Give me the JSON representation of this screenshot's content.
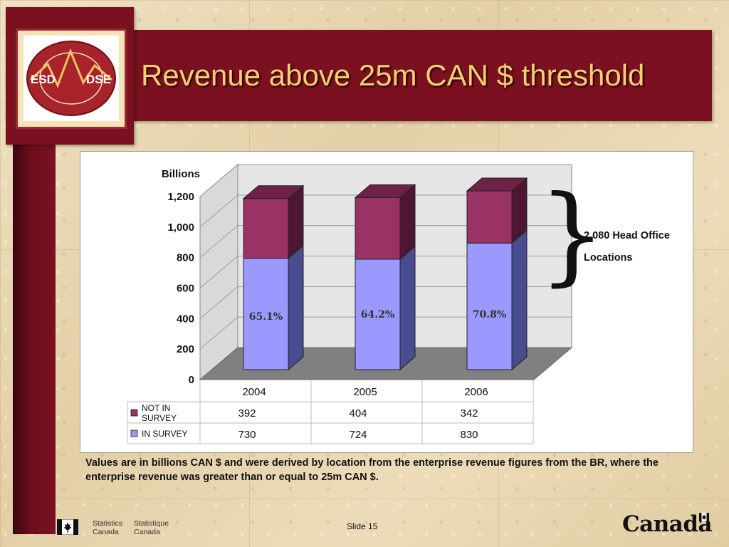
{
  "slide": {
    "title": "Revenue above 25m CAN $ threshold",
    "slide_number": "Slide 15",
    "footnote": "Values are in billions CAN $ and were derived by location from the enterprise revenue figures from the BR, where the enterprise revenue was greater than or equal to 25m CAN $.",
    "annotation": {
      "line1": "2,080 Head Office",
      "line2": "Locations"
    },
    "logo": {
      "left": "ESD",
      "right": "DSE"
    },
    "footer": {
      "stat_en_1": "Statistics",
      "stat_en_2": "Canada",
      "stat_fr_1": "Statistique",
      "stat_fr_2": "Canada",
      "wordmark": "Canada"
    }
  },
  "chart_data": {
    "type": "bar",
    "stacked": true,
    "ylabel": "Billions",
    "ylim": [
      0,
      1200
    ],
    "yticks": [
      "0",
      "200",
      "400",
      "600",
      "800",
      "1,000",
      "1,200"
    ],
    "categories": [
      "2004",
      "2005",
      "2006"
    ],
    "series": [
      {
        "name": "IN SURVEY",
        "label": "IN SURVEY",
        "values": [
          730,
          724,
          830
        ],
        "color": "#9999ff"
      },
      {
        "name": "NOT IN SURVEY",
        "label_1": "NOT IN",
        "label_2": "SURVEY",
        "values": [
          392,
          404,
          342
        ],
        "color": "#993366"
      }
    ],
    "table_not_in": [
      "392",
      "404",
      "342"
    ],
    "table_in": [
      "730",
      "724",
      "830"
    ],
    "percent_labels": [
      "65.1%",
      "64.2%",
      "70.8%"
    ]
  }
}
